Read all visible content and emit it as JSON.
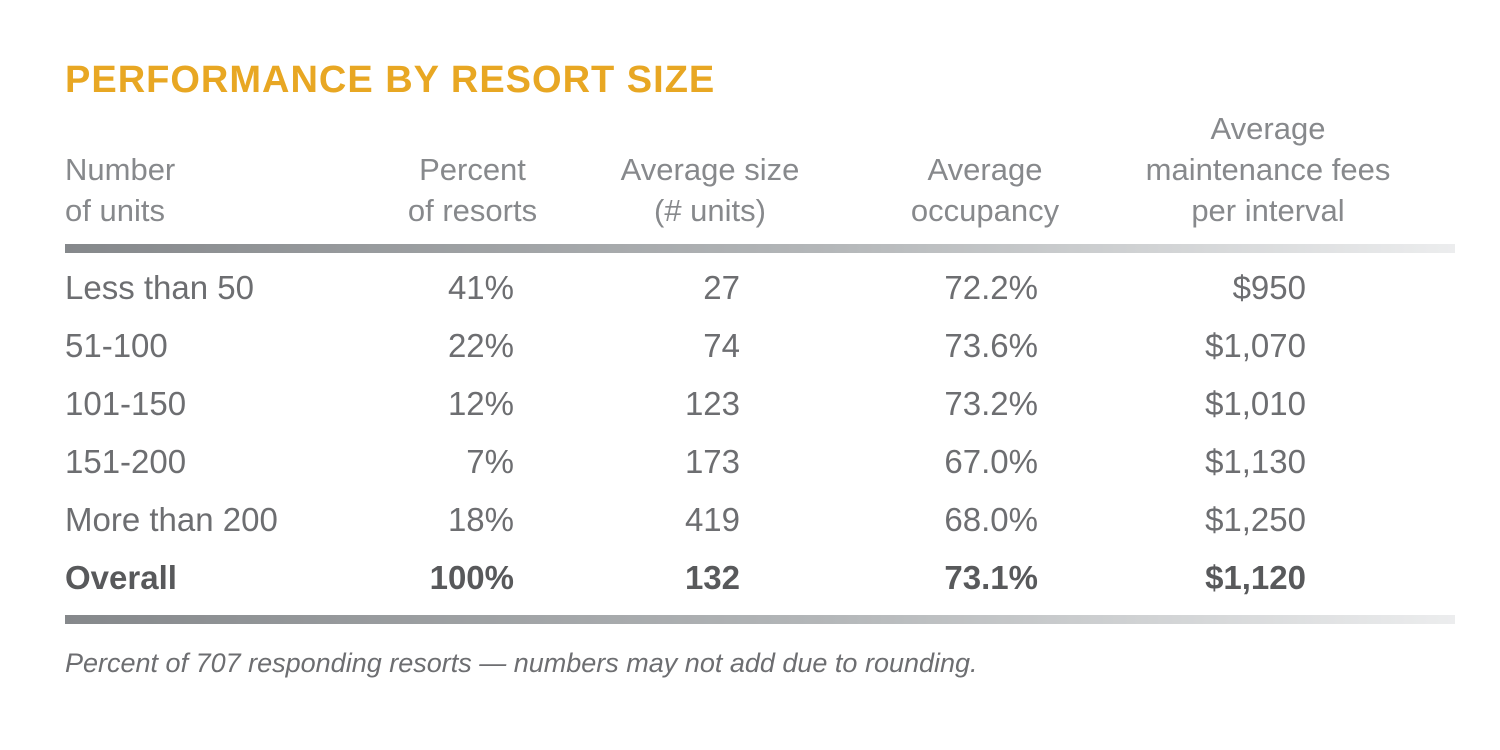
{
  "title": "PERFORMANCE BY RESORT SIZE",
  "colors": {
    "title_gold": "#E8A723",
    "header_gray": "#87898C",
    "body_gray": "#6D6E71",
    "overall_bold_gray": "#58595B",
    "rule_gradient_left": "#85888B",
    "rule_gradient_right": "#ECEDEE"
  },
  "table": {
    "headers": [
      "Number\nof units",
      "Percent\nof resorts",
      "Average size\n(# units)",
      "Average\noccupancy",
      "Average\nmaintenance fees\nper interval"
    ],
    "rows": [
      [
        "Less than 50",
        "41%",
        "27",
        "72.2%",
        "$950"
      ],
      [
        "51-100",
        "22%",
        "74",
        "73.6%",
        "$1,070"
      ],
      [
        "101-150",
        "12%",
        "123",
        "73.2%",
        "$1,010"
      ],
      [
        "151-200",
        "7%",
        "173",
        "67.0%",
        "$1,130"
      ],
      [
        "More than 200",
        "18%",
        "419",
        "68.0%",
        "$1,250"
      ],
      [
        "Overall",
        "100%",
        "132",
        "73.1%",
        "$1,120"
      ]
    ]
  },
  "footnote": "Percent of 707 responding resorts — numbers may not add due to rounding.",
  "chart_data": {
    "type": "table",
    "title": "PERFORMANCE BY RESORT SIZE",
    "columns": [
      "Number of units",
      "Percent of resorts",
      "Average size (# units)",
      "Average occupancy",
      "Average maintenance fees per interval"
    ],
    "rows": [
      [
        "Less than 50",
        "41%",
        27,
        "72.2%",
        "$950"
      ],
      [
        "51-100",
        "22%",
        74,
        "73.6%",
        "$1,070"
      ],
      [
        "101-150",
        "12%",
        123,
        "73.2%",
        "$1,010"
      ],
      [
        "151-200",
        "7%",
        173,
        "67.0%",
        "$1,130"
      ],
      [
        "More than 200",
        "18%",
        419,
        "68.0%",
        "$1,250"
      ],
      [
        "Overall",
        "100%",
        132,
        "73.1%",
        "$1,120"
      ]
    ],
    "footnote": "Percent of 707 responding resorts — numbers may not add due to rounding.",
    "notes": "Overall row is bold summary row; numeric columns right-aligned under centered headers; thick gray gradient rules above and below data rows."
  }
}
